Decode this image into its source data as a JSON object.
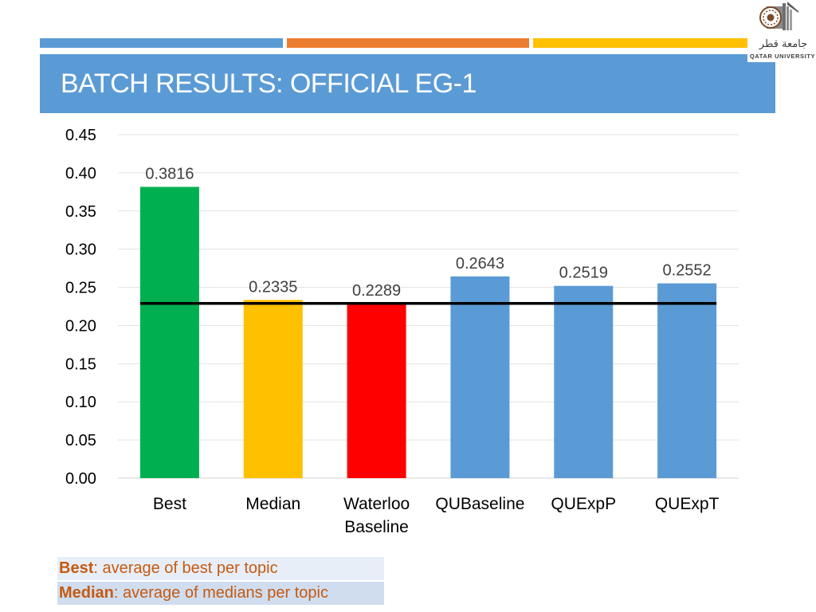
{
  "header": {
    "title": "BATCH RESULTS: OFFICIAL EG-1"
  },
  "logo": {
    "arabic": "جامعة قطر",
    "english": "QATAR UNIVERSITY"
  },
  "colors": {
    "stripe_blue": "#5b9bd5",
    "stripe_orange": "#ed7d31",
    "stripe_yellow": "#ffc000",
    "title_bar": "#5b9bd5",
    "best": "#00b050",
    "median": "#ffc000",
    "waterloo": "#ff0000",
    "qu": "#5b9bd5",
    "baseline_line": "#000000",
    "legend_text": "#c55a11"
  },
  "chart_data": {
    "type": "bar",
    "categories": [
      "Best",
      "Median",
      "Waterloo Baseline",
      "QUBaseline",
      "QUExpP",
      "QUExpT"
    ],
    "category_lines": [
      [
        "Best"
      ],
      [
        "Median"
      ],
      [
        "Waterloo",
        "Baseline"
      ],
      [
        "QUBaseline"
      ],
      [
        "QUExpP"
      ],
      [
        "QUExpT"
      ]
    ],
    "values": [
      0.3816,
      0.2335,
      0.2289,
      0.2643,
      0.2519,
      0.2552
    ],
    "data_labels": [
      "0.3816",
      "0.2335",
      "0.2289",
      "0.2643",
      "0.2519",
      "0.2552"
    ],
    "bar_colors": [
      "#00b050",
      "#ffc000",
      "#ff0000",
      "#5b9bd5",
      "#5b9bd5",
      "#5b9bd5"
    ],
    "ylim": [
      0,
      0.45
    ],
    "yticks": [
      0.0,
      0.05,
      0.1,
      0.15,
      0.2,
      0.25,
      0.3,
      0.35,
      0.4,
      0.45
    ],
    "ytick_labels": [
      "0.00",
      "0.05",
      "0.10",
      "0.15",
      "0.20",
      "0.25",
      "0.30",
      "0.35",
      "0.40",
      "0.45"
    ],
    "reference_line": 0.2289,
    "grid": true,
    "title": "",
    "xlabel": "",
    "ylabel": ""
  },
  "legend": {
    "best_term": "Best",
    "best_desc": ": average of best per topic",
    "median_term": "Median",
    "median_desc": ": average of medians per topic"
  }
}
